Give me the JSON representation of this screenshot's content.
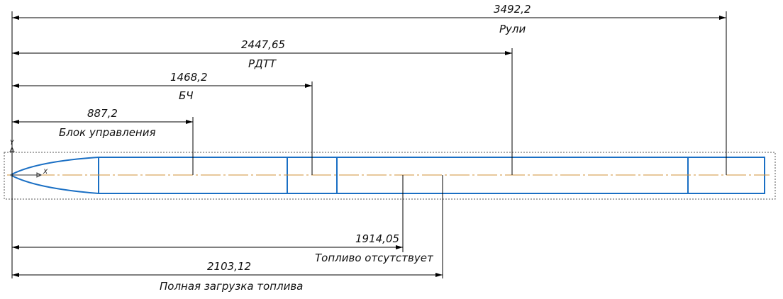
{
  "colors": {
    "dimension": "#000000",
    "body": "#1a6fc4",
    "axis": "#d2913a",
    "frame": "#555555"
  },
  "axis_labels": {
    "y": "Y",
    "x": "X"
  },
  "dimensions_top": [
    {
      "value": "3492,2",
      "label": "Рули"
    },
    {
      "value": "2447,65",
      "label": "РДТТ"
    },
    {
      "value": "1468,2",
      "label": "БЧ"
    },
    {
      "value": "887,2",
      "label": "Блок управления"
    }
  ],
  "dimensions_bottom": [
    {
      "value": "1914,05",
      "label": "Топливо отсутствует"
    },
    {
      "value": "2103,12",
      "label": "Полная загрузка топлива"
    }
  ]
}
